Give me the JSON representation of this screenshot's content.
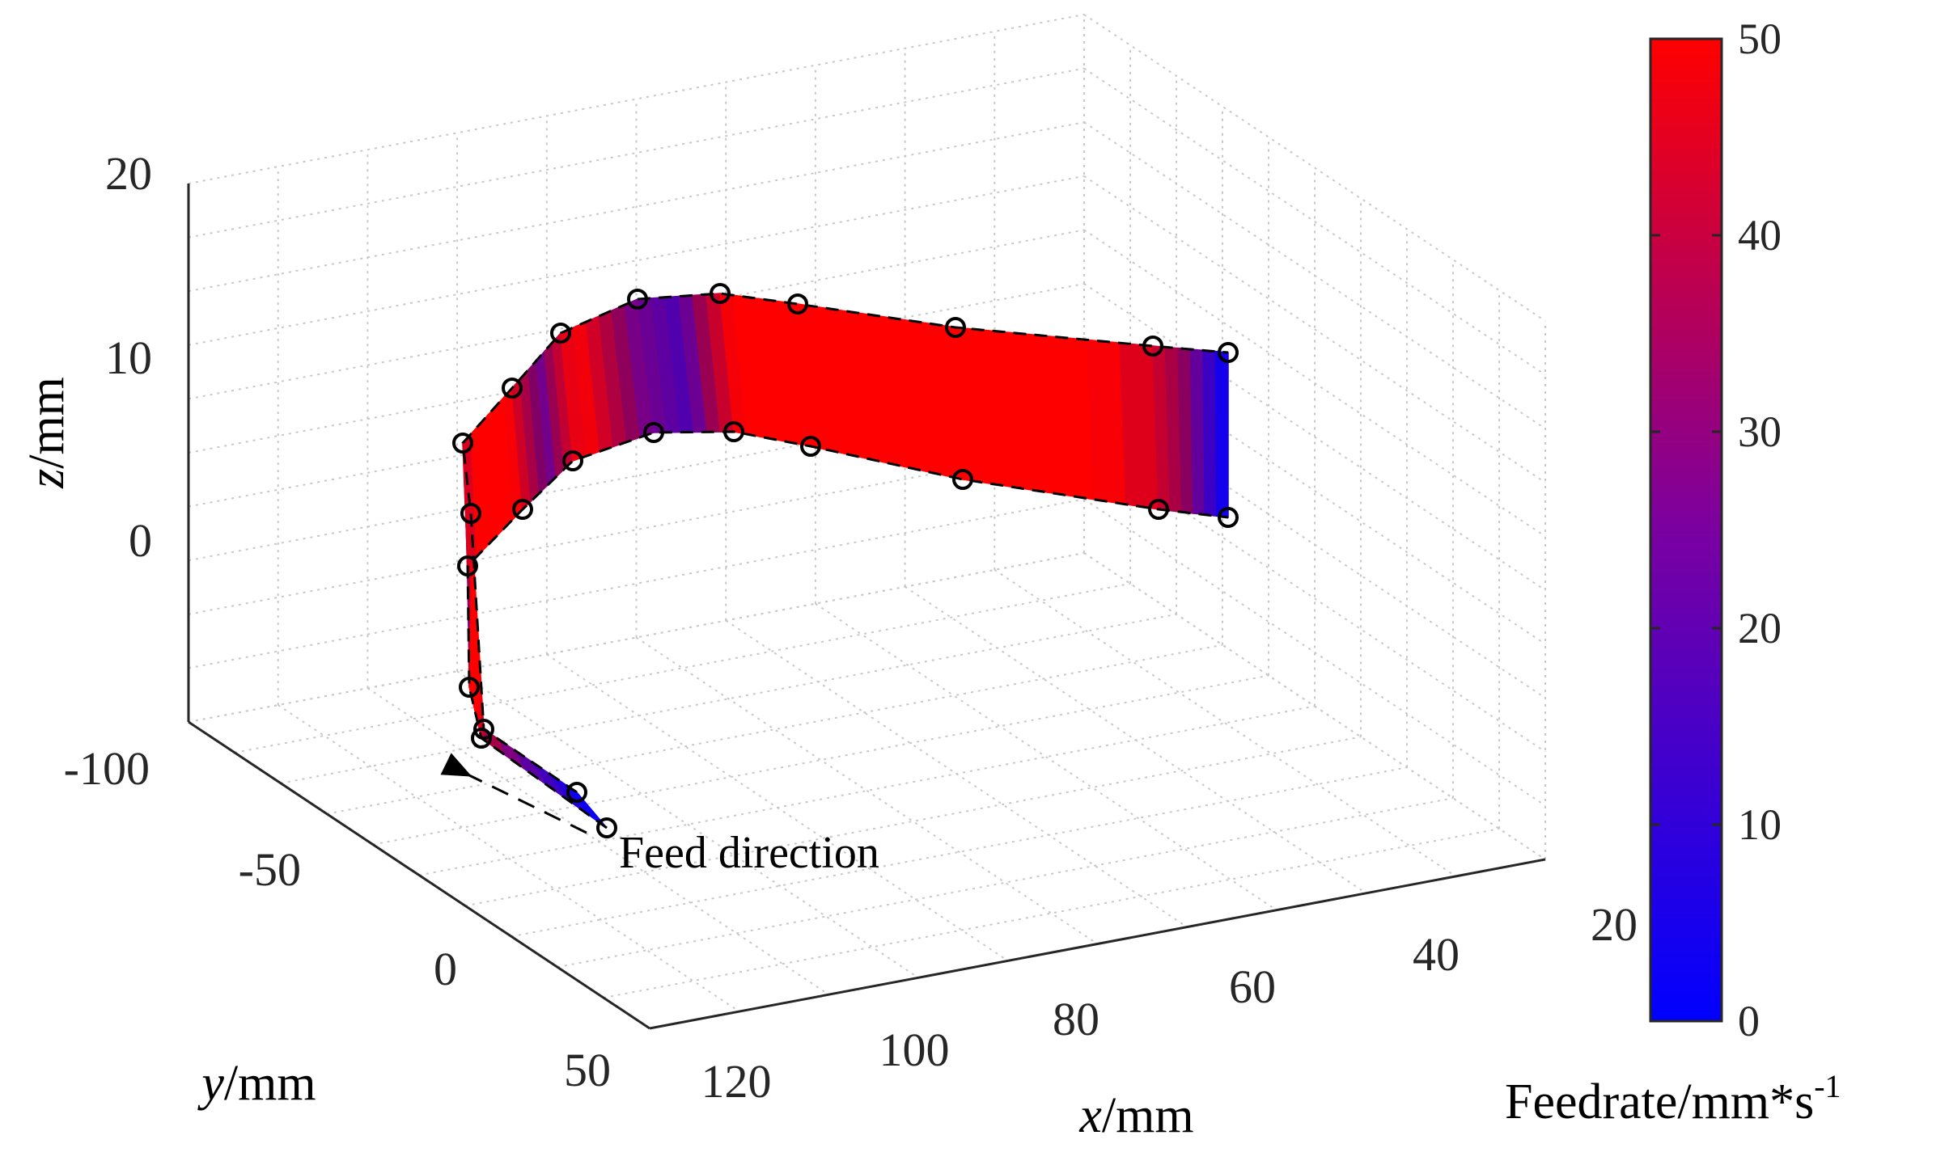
{
  "chart_data": {
    "type": "3d-ribbon",
    "title": "",
    "xlabel_var": "x",
    "xlabel_unit": "/mm",
    "ylabel_var": "y",
    "ylabel_unit": "/mm",
    "zlabel_var": "z",
    "zlabel_unit": "/mm",
    "x_ticks": [
      "20",
      "40",
      "60",
      "80",
      "100",
      "120"
    ],
    "y_ticks": [
      "-100",
      "-50",
      "0",
      "50"
    ],
    "z_ticks": [
      "0",
      "10",
      "20"
    ],
    "colorbar": {
      "label": "Feedrate/mm*s",
      "label_exponent": "-1",
      "ticks": [
        "0",
        "10",
        "20",
        "30",
        "40",
        "50"
      ],
      "range": [
        0,
        50
      ],
      "color_low": "#0000ff",
      "color_high": "#ff0000"
    },
    "annotation": "Feed direction",
    "grid": true,
    "feedrate_profile": [
      0,
      20,
      50,
      50,
      20,
      50,
      50,
      20,
      50,
      25,
      15,
      50,
      50,
      50,
      50,
      50,
      30,
      0
    ],
    "ribbon_note": "tool path ribbon; colour encodes feedrate along the path"
  }
}
